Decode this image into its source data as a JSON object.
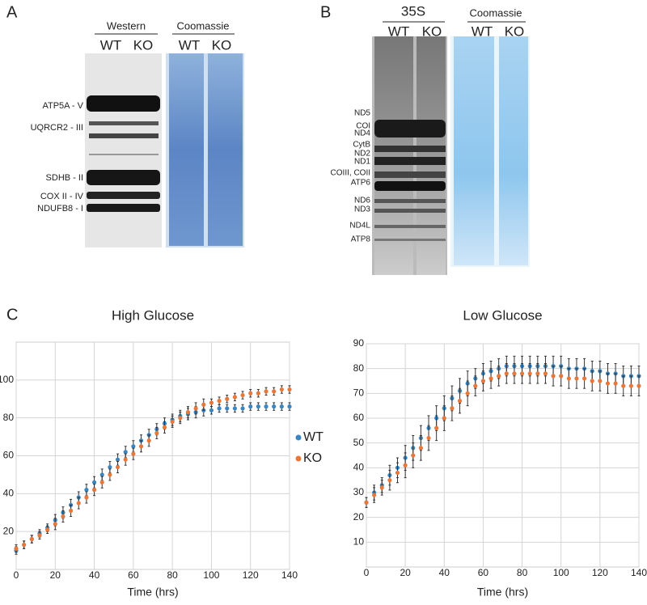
{
  "panels": {
    "a": "A",
    "b": "B",
    "c": "C"
  },
  "western": {
    "header": "Western",
    "lanes": [
      "WT",
      "KO"
    ],
    "coomassie": "Coomassie",
    "coomassie_lanes": [
      "WT",
      "KO"
    ],
    "bands": [
      "ATP5A - V",
      "UQRCR2 - III",
      "SDHB - II",
      "COX II - IV",
      "NDUFB8 - I"
    ]
  },
  "s35": {
    "header": "35S",
    "lanes": [
      "WT",
      "KO"
    ],
    "coomassie": "Coomassie",
    "coomassie_lanes": [
      "WT",
      "KO"
    ],
    "bands": [
      "ND5",
      "COI",
      "ND4",
      "CytB",
      "ND2",
      "ND1",
      "COIII, COII",
      "ATP6",
      "ND6",
      "ND3",
      "ND4L",
      "ATP8"
    ]
  },
  "chart_data": [
    {
      "type": "scatter",
      "title": "High Glucose",
      "x_label": "Time (hrs)",
      "x": [
        0,
        4,
        8,
        12,
        16,
        20,
        24,
        28,
        32,
        36,
        40,
        44,
        48,
        52,
        56,
        60,
        64,
        68,
        72,
        76,
        80,
        84,
        88,
        92,
        96,
        100,
        104,
        108,
        112,
        116,
        120,
        124,
        128,
        132,
        136,
        140
      ],
      "series": [
        {
          "name": "WT",
          "color": "#3a86c0",
          "values": [
            10,
            13,
            16,
            19,
            22,
            26,
            30,
            34,
            38,
            42,
            46,
            50,
            54,
            58,
            62,
            65,
            68,
            71,
            74,
            77,
            79,
            81,
            82,
            83,
            84,
            84,
            85,
            85,
            85,
            85,
            86,
            86,
            86,
            86,
            86,
            86
          ],
          "errors": [
            2,
            2,
            2,
            2,
            2,
            3,
            3,
            3,
            3,
            3,
            3,
            3,
            3,
            3,
            3,
            3,
            3,
            3,
            3,
            3,
            3,
            3,
            3,
            3,
            3,
            2,
            2,
            2,
            2,
            2,
            2,
            2,
            2,
            2,
            2,
            2
          ]
        },
        {
          "name": "KO",
          "color": "#e8773a",
          "values": [
            11,
            13,
            16,
            18,
            21,
            24,
            28,
            31,
            35,
            38,
            42,
            46,
            50,
            54,
            58,
            61,
            65,
            68,
            72,
            75,
            78,
            80,
            83,
            85,
            87,
            88,
            89,
            90,
            91,
            92,
            93,
            93,
            94,
            94,
            95,
            95
          ],
          "errors": [
            2,
            2,
            2,
            2,
            2,
            3,
            3,
            3,
            3,
            3,
            3,
            3,
            3,
            3,
            3,
            3,
            3,
            3,
            3,
            3,
            3,
            3,
            3,
            3,
            3,
            2,
            2,
            2,
            2,
            2,
            2,
            2,
            2,
            2,
            2,
            2
          ]
        }
      ],
      "xlim": [
        0,
        140
      ],
      "xticks": [
        0,
        20,
        40,
        60,
        80,
        100,
        120,
        140
      ],
      "ylim": [
        0,
        120
      ],
      "yticks": [
        20,
        40,
        60,
        80,
        100
      ],
      "grid": true,
      "legend": "right"
    },
    {
      "type": "scatter",
      "title": "Low Glucose",
      "x_label": "Time (hrs)",
      "x": [
        0,
        4,
        8,
        12,
        16,
        20,
        24,
        28,
        32,
        36,
        40,
        44,
        48,
        52,
        56,
        60,
        64,
        68,
        72,
        76,
        80,
        84,
        88,
        92,
        96,
        100,
        104,
        108,
        112,
        116,
        120,
        124,
        128,
        132,
        136,
        140
      ],
      "series": [
        {
          "color": "#3a86c0",
          "values": [
            26,
            30,
            33,
            37,
            40,
            44,
            48,
            52,
            56,
            60,
            64,
            68,
            71,
            74,
            76,
            78,
            79,
            80,
            81,
            81,
            81,
            81,
            81,
            81,
            81,
            81,
            80,
            80,
            80,
            79,
            79,
            78,
            78,
            77,
            77,
            77
          ],
          "errors": [
            2,
            3,
            3,
            4,
            4,
            5,
            5,
            5,
            5,
            5,
            5,
            5,
            5,
            5,
            4,
            4,
            4,
            4,
            4,
            4,
            4,
            4,
            4,
            4,
            4,
            4,
            4,
            4,
            4,
            4,
            4,
            4,
            4,
            4,
            4,
            4
          ]
        },
        {
          "color": "#e8773a",
          "values": [
            26,
            29,
            32,
            35,
            38,
            41,
            45,
            48,
            52,
            56,
            60,
            64,
            67,
            70,
            73,
            75,
            76,
            77,
            78,
            78,
            78,
            78,
            78,
            78,
            77,
            77,
            76,
            76,
            76,
            75,
            75,
            74,
            74,
            73,
            73,
            73
          ],
          "errors": [
            2,
            3,
            3,
            4,
            4,
            5,
            5,
            5,
            5,
            5,
            5,
            5,
            5,
            5,
            4,
            4,
            4,
            4,
            4,
            4,
            4,
            4,
            4,
            4,
            4,
            4,
            4,
            4,
            4,
            4,
            4,
            4,
            4,
            4,
            4,
            4
          ]
        }
      ],
      "xlim": [
        0,
        140
      ],
      "xticks": [
        0,
        20,
        40,
        60,
        80,
        100,
        120,
        140
      ],
      "ylim": [
        0,
        90
      ],
      "yticks": [
        10,
        20,
        30,
        40,
        50,
        60,
        70,
        80,
        90
      ],
      "grid": true
    }
  ]
}
